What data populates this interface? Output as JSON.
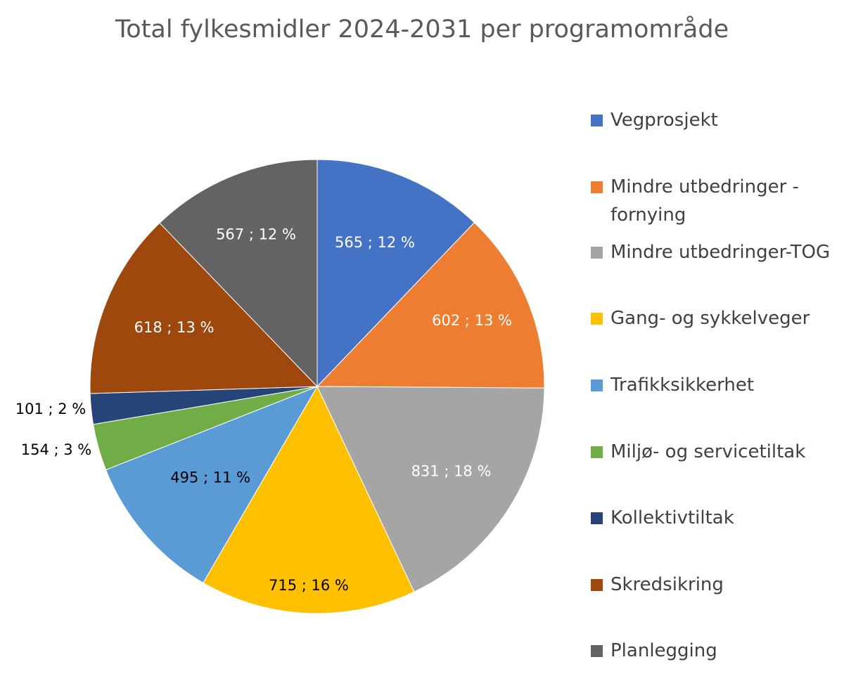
{
  "chart_data": {
    "type": "pie",
    "title": "Total fylkesmidler 2024-2031 per programområde",
    "slices": [
      {
        "name": "Vegprosjekt",
        "value": 565,
        "percent": 12,
        "label": "565 ; 12 %",
        "color": "#4472C4",
        "label_color": "#FFFFFF"
      },
      {
        "name": "Mindre utbedringer - fornying",
        "value": 602,
        "percent": 13,
        "label": "602 ; 13 %",
        "color": "#ED7D31",
        "label_color": "#FFFFFF"
      },
      {
        "name": "Mindre utbedringer-TOG",
        "value": 831,
        "percent": 18,
        "label": "831 ; 18 %",
        "color": "#A5A5A5",
        "label_color": "#FFFFFF"
      },
      {
        "name": "Gang- og sykkelveger",
        "value": 715,
        "percent": 16,
        "label": "715 ; 16 %",
        "color": "#FFC000",
        "label_color": "#000000"
      },
      {
        "name": "Trafikksikkerhet",
        "value": 495,
        "percent": 11,
        "label": "495 ; 11 %",
        "color": "#5B9BD5",
        "label_color": "#000000"
      },
      {
        "name": "Miljø- og servicetiltak",
        "value": 154,
        "percent": 3,
        "label": "154 ; 3 %",
        "color": "#70AD47",
        "label_color": "#000000"
      },
      {
        "name": "Kollektivtiltak",
        "value": 101,
        "percent": 2,
        "label": "101 ; 2 %",
        "color": "#264478",
        "label_color": "#000000"
      },
      {
        "name": "Skredsikring",
        "value": 618,
        "percent": 13,
        "label": "618 ; 13 %",
        "color": "#9E480E",
        "label_color": "#FFFFFF"
      },
      {
        "name": "Planlegging",
        "value": 567,
        "percent": 12,
        "label": "567 ; 12 %",
        "color": "#636363",
        "label_color": "#FFFFFF"
      }
    ],
    "legend_position": "right"
  },
  "legend_items": [
    {
      "label": "Vegprosjekt",
      "color": "#4472C4"
    },
    {
      "label": "Mindre utbedringer - fornying",
      "color": "#ED7D31"
    },
    {
      "label": "Mindre utbedringer-TOG",
      "color": "#A5A5A5"
    },
    {
      "label": "Gang- og sykkelveger",
      "color": "#FFC000"
    },
    {
      "label": "Trafikksikkerhet",
      "color": "#5B9BD5"
    },
    {
      "label": "Miljø- og servicetiltak",
      "color": "#70AD47"
    },
    {
      "label": "Kollektivtiltak",
      "color": "#264478"
    },
    {
      "label": "Skredsikring",
      "color": "#9E480E"
    },
    {
      "label": "Planlegging",
      "color": "#636363"
    }
  ]
}
